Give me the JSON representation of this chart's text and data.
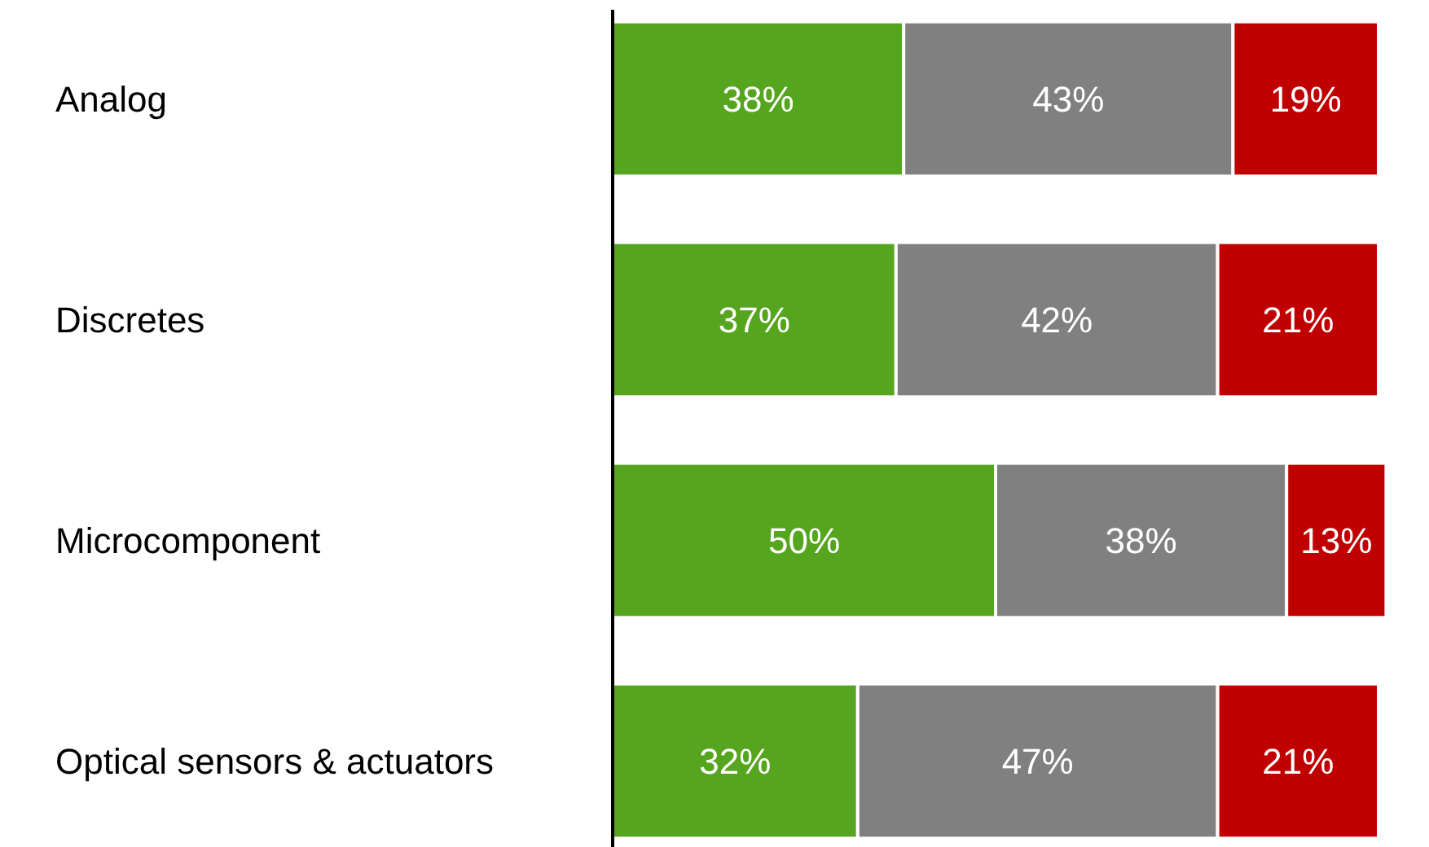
{
  "chart_data": {
    "type": "bar",
    "orientation": "horizontal",
    "stacked": true,
    "categories": [
      "Analog",
      "Discretes",
      "Microcomponent",
      "Optical sensors & actuators"
    ],
    "series": [
      {
        "color": "#56a51e",
        "values": [
          38,
          37,
          50,
          32
        ],
        "value_labels": [
          "38%",
          "37%",
          "50%",
          "32%"
        ]
      },
      {
        "color": "#808080",
        "values": [
          43,
          42,
          38,
          47
        ],
        "value_labels": [
          "43%",
          "42%",
          "38%",
          "47%"
        ]
      },
      {
        "color": "#c00000",
        "values": [
          19,
          21,
          13,
          21
        ],
        "value_labels": [
          "19%",
          "21%",
          "13%",
          "21%"
        ]
      }
    ]
  }
}
